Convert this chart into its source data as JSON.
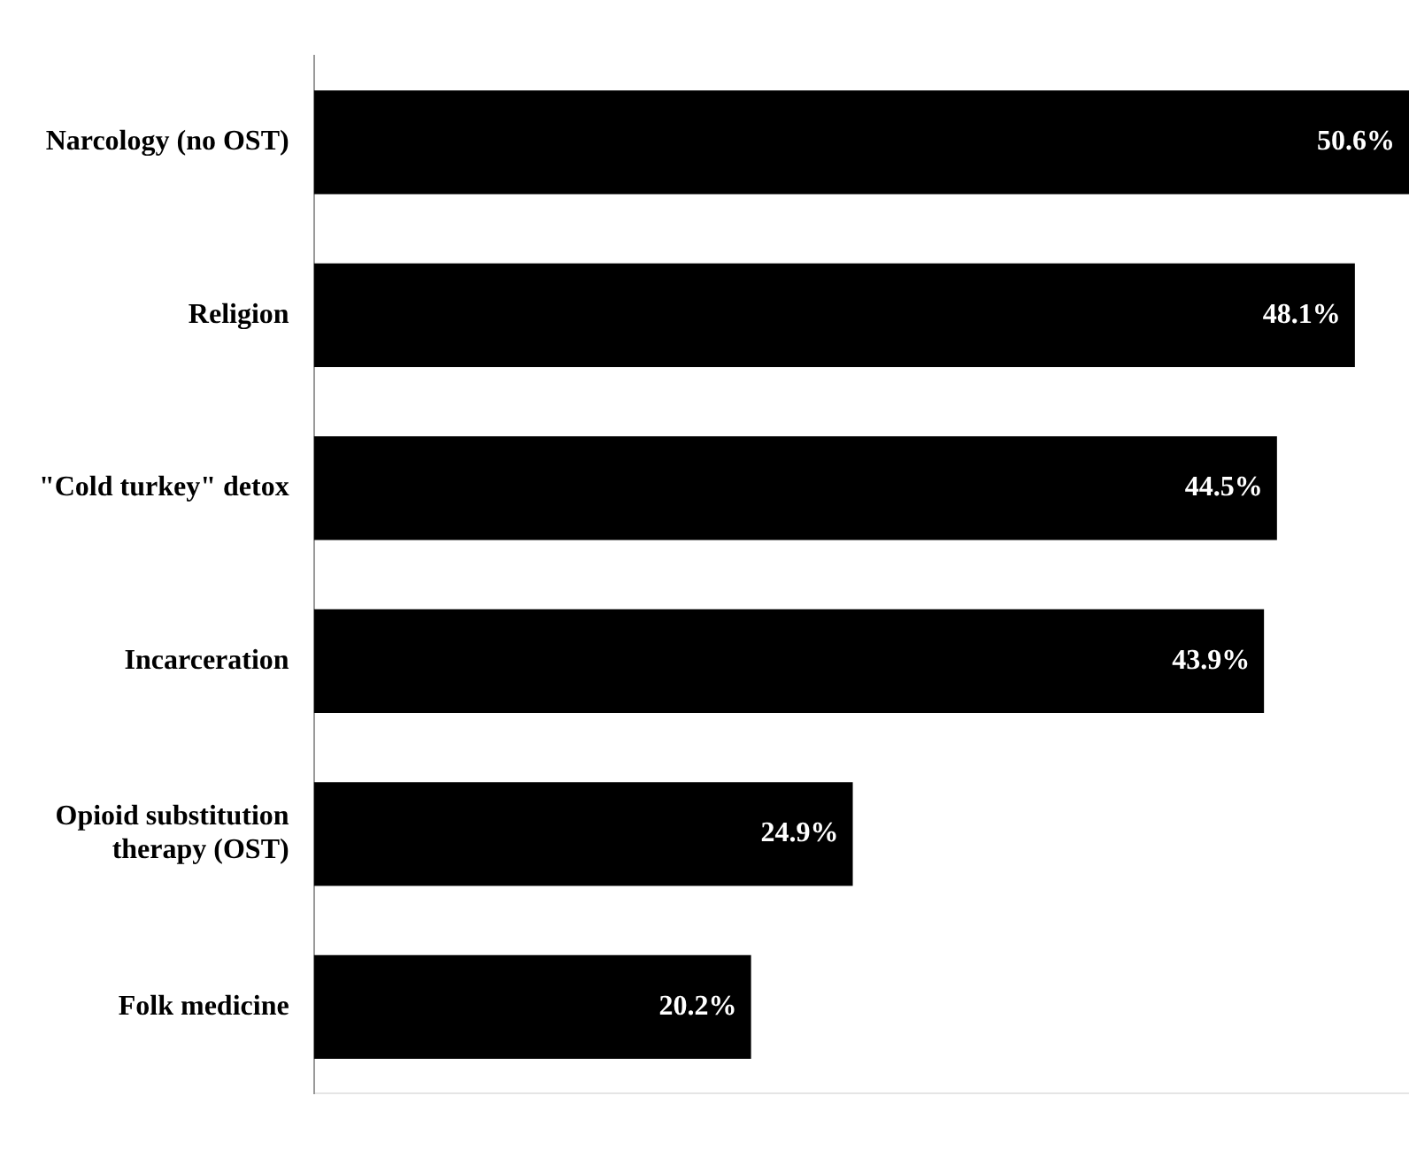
{
  "chart_data": {
    "type": "bar",
    "orientation": "horizontal",
    "categories": [
      "Narcology (no OST)",
      "Religion",
      "\"Cold turkey\" detox",
      "Incarceration",
      "Opioid substitution therapy (OST)",
      "Folk medicine"
    ],
    "values": [
      50.6,
      48.1,
      44.5,
      43.9,
      24.9,
      20.2
    ],
    "value_labels": [
      "50.6%",
      "48.1%",
      "44.5%",
      "43.9%",
      "24.9%",
      "20.2%"
    ],
    "color": "#000000"
  }
}
